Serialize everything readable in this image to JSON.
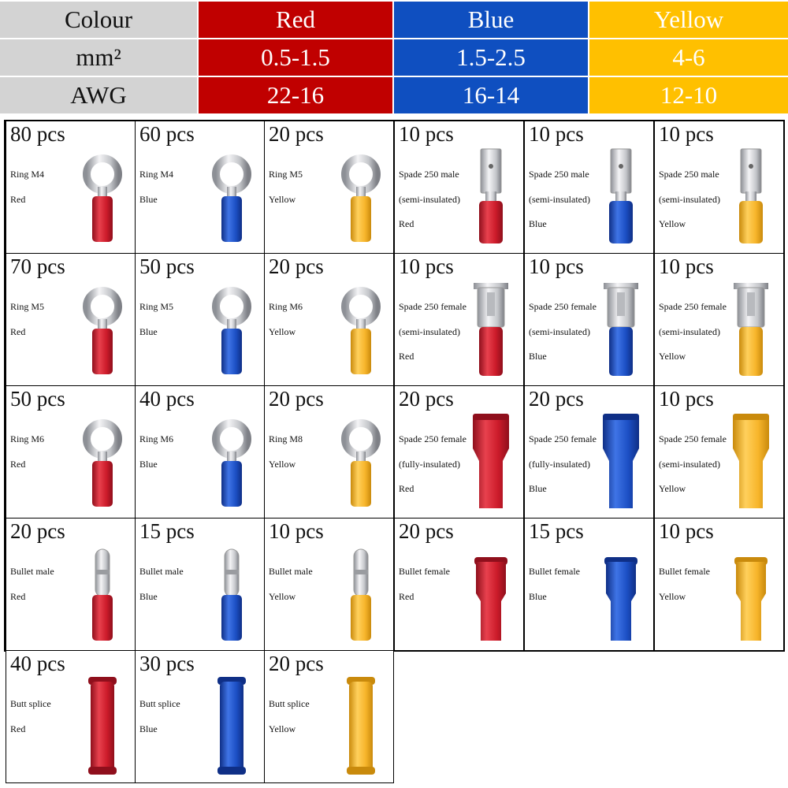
{
  "spec_table": {
    "rows": [
      {
        "label": "Colour",
        "values": [
          "Red",
          "Blue",
          "Yellow"
        ]
      },
      {
        "label": "mm²",
        "values": [
          "0.5-1.5",
          "1.5-2.5",
          "4-6"
        ]
      },
      {
        "label": "AWG",
        "values": [
          "22-16",
          "16-14",
          "12-10"
        ]
      }
    ]
  },
  "colors": {
    "red": "#cc1b2a",
    "blue": "#1c4fc4",
    "yellow": "#f7b52b",
    "metal": "#d9dadd"
  },
  "items": [
    {
      "qty": "80 pcs",
      "lines": [
        "Ring M4",
        "Red"
      ],
      "icon": "ring-terminal-icon",
      "color": "red"
    },
    {
      "qty": "60 pcs",
      "lines": [
        "Ring M4",
        "Blue"
      ],
      "icon": "ring-terminal-icon",
      "color": "blue"
    },
    {
      "qty": "20 pcs",
      "lines": [
        "Ring M5",
        "Yellow"
      ],
      "icon": "ring-terminal-icon",
      "color": "yellow"
    },
    {
      "qty": "10 pcs",
      "lines": [
        "Spade 250 male",
        "(semi-insulated)",
        "Red"
      ],
      "icon": "spade-male-icon",
      "color": "red"
    },
    {
      "qty": "10 pcs",
      "lines": [
        "Spade 250 male",
        "(semi-insulated)",
        "Blue"
      ],
      "icon": "spade-male-icon",
      "color": "blue"
    },
    {
      "qty": "10 pcs",
      "lines": [
        "Spade 250 male",
        "(semi-insulated)",
        "Yellow"
      ],
      "icon": "spade-male-icon",
      "color": "yellow"
    },
    {
      "qty": "70 pcs",
      "lines": [
        "Ring M5",
        "Red"
      ],
      "icon": "ring-terminal-icon",
      "color": "red"
    },
    {
      "qty": "50 pcs",
      "lines": [
        "Ring M5",
        "Blue"
      ],
      "icon": "ring-terminal-icon",
      "color": "blue"
    },
    {
      "qty": "20 pcs",
      "lines": [
        "Ring M6",
        "Yellow"
      ],
      "icon": "ring-terminal-icon",
      "color": "yellow"
    },
    {
      "qty": "10 pcs",
      "lines": [
        "Spade 250 female",
        "(semi-insulated)",
        "Red"
      ],
      "icon": "spade-female-icon",
      "color": "red"
    },
    {
      "qty": "10 pcs",
      "lines": [
        "Spade 250 female",
        "(semi-insulated)",
        "Blue"
      ],
      "icon": "spade-female-icon",
      "color": "blue"
    },
    {
      "qty": "10 pcs",
      "lines": [
        "Spade 250 female",
        "(semi-insulated)",
        "Yellow"
      ],
      "icon": "spade-female-icon",
      "color": "yellow"
    },
    {
      "qty": "50 pcs",
      "lines": [
        "Ring M6",
        "Red"
      ],
      "icon": "ring-terminal-icon",
      "color": "red"
    },
    {
      "qty": "40 pcs",
      "lines": [
        "Ring M6",
        "Blue"
      ],
      "icon": "ring-terminal-icon",
      "color": "blue"
    },
    {
      "qty": "20 pcs",
      "lines": [
        "Ring M8",
        "Yellow"
      ],
      "icon": "ring-terminal-icon",
      "color": "yellow"
    },
    {
      "qty": "20 pcs",
      "lines": [
        "Spade 250 female",
        "(fully-insulated)",
        "Red"
      ],
      "icon": "spade-fully-insulated-icon",
      "color": "red"
    },
    {
      "qty": "20 pcs",
      "lines": [
        "Spade 250 female",
        "(fully-insulated)",
        "Blue"
      ],
      "icon": "spade-fully-insulated-icon",
      "color": "blue"
    },
    {
      "qty": "10 pcs",
      "lines": [
        "Spade 250 female",
        "(semi-insulated)",
        "Yellow"
      ],
      "icon": "spade-fully-insulated-icon",
      "color": "yellow"
    },
    {
      "qty": "20 pcs",
      "lines": [
        "Bullet male",
        "Red"
      ],
      "icon": "bullet-male-icon",
      "color": "red"
    },
    {
      "qty": "15 pcs",
      "lines": [
        "Bullet male",
        "Blue"
      ],
      "icon": "bullet-male-icon",
      "color": "blue"
    },
    {
      "qty": "10 pcs",
      "lines": [
        "Bullet male",
        "Yellow"
      ],
      "icon": "bullet-male-icon",
      "color": "yellow"
    },
    {
      "qty": "20 pcs",
      "lines": [
        "Bullet female",
        "Red"
      ],
      "icon": "bullet-female-icon",
      "color": "red"
    },
    {
      "qty": "15 pcs",
      "lines": [
        "Bullet female",
        "Blue"
      ],
      "icon": "bullet-female-icon",
      "color": "blue"
    },
    {
      "qty": "10 pcs",
      "lines": [
        "Bullet female",
        "Yellow"
      ],
      "icon": "bullet-female-icon",
      "color": "yellow"
    },
    {
      "qty": "40 pcs",
      "lines": [
        "Butt splice",
        "Red"
      ],
      "icon": "butt-splice-icon",
      "color": "red"
    },
    {
      "qty": "30 pcs",
      "lines": [
        "Butt splice",
        "Blue"
      ],
      "icon": "butt-splice-icon",
      "color": "blue"
    },
    {
      "qty": "20 pcs",
      "lines": [
        "Butt splice",
        "Yellow"
      ],
      "icon": "butt-splice-icon",
      "color": "yellow"
    }
  ]
}
